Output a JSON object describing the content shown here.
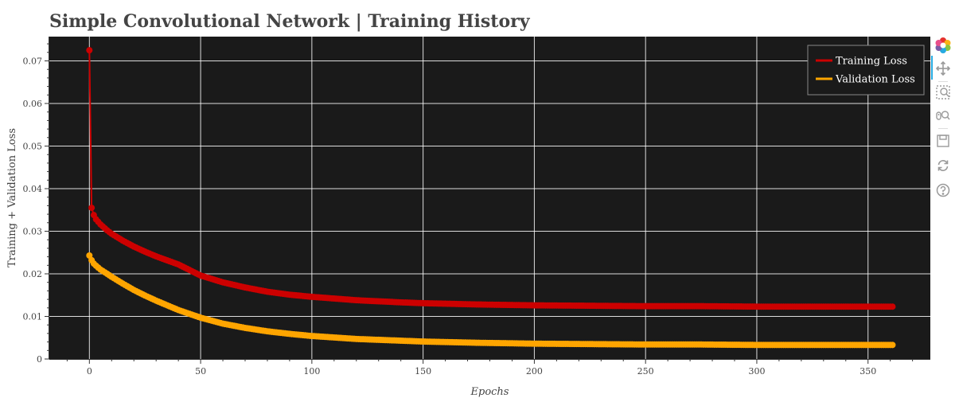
{
  "chart_data": {
    "type": "line",
    "title": "Simple Convolutional Network | Training History",
    "xlabel": "Epochs",
    "ylabel": "Training + Validation Loss",
    "xlim": [
      -18,
      378
    ],
    "ylim": [
      0,
      0.0757
    ],
    "x_ticks": [
      0,
      50,
      100,
      150,
      200,
      250,
      300,
      350
    ],
    "y_ticks": [
      0,
      0.01,
      0.02,
      0.03,
      0.04,
      0.05,
      0.06,
      0.07
    ],
    "x_tick_labels": [
      "0",
      "50",
      "100",
      "150",
      "200",
      "250",
      "300",
      "350"
    ],
    "y_tick_labels": [
      "0",
      "0.01",
      "0.02",
      "0.03",
      "0.04",
      "0.05",
      "0.06",
      "0.07"
    ],
    "grid": true,
    "background": "#1a1a1a",
    "legend_position": "top-right",
    "series": [
      {
        "name": "Training Loss",
        "color": "#cc0000",
        "x": [
          0,
          1,
          2,
          3,
          5,
          8,
          10,
          15,
          20,
          25,
          30,
          40,
          50,
          60,
          70,
          80,
          90,
          100,
          120,
          140,
          150,
          175,
          200,
          225,
          250,
          275,
          300,
          325,
          350,
          361
        ],
        "y": [
          0.0725,
          0.0355,
          0.0338,
          0.0328,
          0.0316,
          0.0302,
          0.0294,
          0.0278,
          0.0264,
          0.0252,
          0.0241,
          0.0222,
          0.0196,
          0.018,
          0.0168,
          0.0158,
          0.0151,
          0.0146,
          0.0138,
          0.0133,
          0.0131,
          0.0128,
          0.0126,
          0.0125,
          0.0124,
          0.0124,
          0.0123,
          0.0123,
          0.0123,
          0.0123
        ]
      },
      {
        "name": "Validation Loss",
        "color": "#ffa500",
        "x": [
          0,
          1,
          2,
          3,
          5,
          8,
          10,
          15,
          20,
          25,
          30,
          40,
          50,
          60,
          70,
          80,
          90,
          100,
          120,
          140,
          150,
          175,
          200,
          225,
          250,
          275,
          300,
          325,
          350,
          361
        ],
        "y": [
          0.0243,
          0.0232,
          0.0224,
          0.0219,
          0.021,
          0.02,
          0.0193,
          0.0177,
          0.0162,
          0.0149,
          0.0137,
          0.0115,
          0.0097,
          0.0083,
          0.0073,
          0.0065,
          0.0059,
          0.0054,
          0.0047,
          0.0043,
          0.0041,
          0.0038,
          0.0036,
          0.0035,
          0.0034,
          0.0034,
          0.0033,
          0.0033,
          0.0033,
          0.0033
        ]
      }
    ]
  },
  "toolbar": {
    "tools": [
      {
        "icon": "bokeh-logo-icon"
      },
      {
        "icon": "pan-icon"
      },
      {
        "icon": "box-zoom-icon"
      },
      {
        "icon": "wheel-zoom-icon"
      },
      {
        "icon": "save-icon"
      },
      {
        "icon": "reset-icon"
      },
      {
        "icon": "help-icon"
      }
    ]
  }
}
